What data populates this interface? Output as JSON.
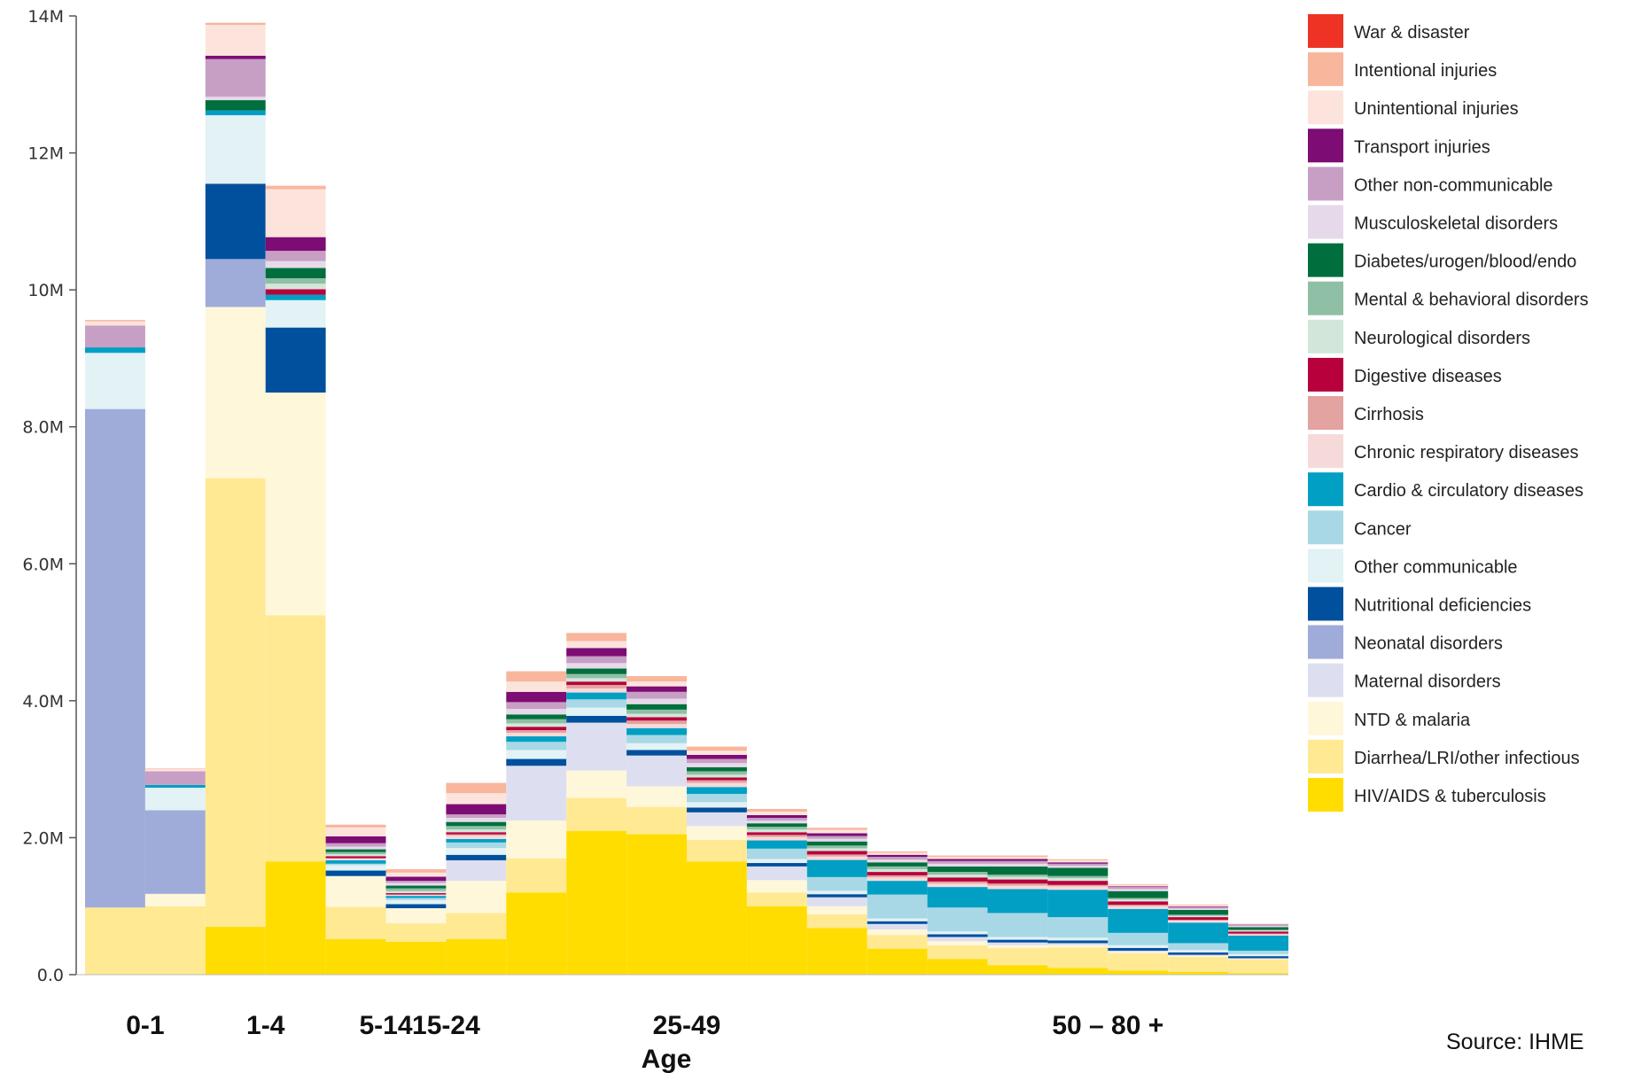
{
  "chart_data": {
    "type": "bar",
    "stacked": true,
    "title": "",
    "xlabel": "Age",
    "ylabel": "",
    "ylim": [
      0,
      14000000
    ],
    "yticks": [
      {
        "value": 0,
        "label": "0.0"
      },
      {
        "value": 2000000,
        "label": "2.0M"
      },
      {
        "value": 4000000,
        "label": "4.0M"
      },
      {
        "value": 6000000,
        "label": "6.0M"
      },
      {
        "value": 8000000,
        "label": "8.0M"
      },
      {
        "value": 10000000,
        "label": "10M"
      },
      {
        "value": 12000000,
        "label": "12M"
      },
      {
        "value": 14000000,
        "label": "14M"
      }
    ],
    "grid": false,
    "legend_position": "right",
    "group_labels": [
      {
        "label": "0-1",
        "center": 0.5
      },
      {
        "label": "1-4",
        "center": 2.5
      },
      {
        "label": "5-14",
        "center": 4.5
      },
      {
        "label": "15-24",
        "center": 5.5
      },
      {
        "label": "25-49",
        "center": 9.5
      },
      {
        "label": "50 – 80 +",
        "center": 16.5
      }
    ],
    "series_order_top_to_bottom": [
      "War & disaster",
      "Intentional injuries",
      "Unintentional injuries",
      "Transport injuries",
      "Other non-communicable",
      "Musculoskeletal disorders",
      "Diabetes/urogen/blood/endo",
      "Mental & behavioral disorders",
      "Neurological disorders",
      "Digestive diseases",
      "Cirrhosis",
      "Chronic respiratory diseases",
      "Cardio & circulatory diseases",
      "Cancer",
      "Other communicable",
      "Nutritional deficiencies",
      "Neonatal disorders",
      "Maternal disorders",
      "NTD & malaria",
      "Diarrhea/LRI/other infectious",
      "HIV/AIDS & tuberculosis"
    ],
    "series": [
      {
        "name": "HIV/AIDS & tuberculosis",
        "color": "#FFDD00",
        "values": [
          0,
          0,
          700000,
          1650000,
          520000,
          480000,
          520000,
          1200000,
          2100000,
          2050000,
          1650000,
          1000000,
          680000,
          380000,
          230000,
          140000,
          100000,
          60000,
          40000,
          20000
        ]
      },
      {
        "name": "Diarrhea/LRI/other infectious",
        "color": "#FFE993",
        "values": [
          980000,
          1000000,
          6550000,
          3600000,
          470000,
          270000,
          380000,
          500000,
          480000,
          400000,
          320000,
          200000,
          200000,
          200000,
          200000,
          250000,
          300000,
          250000,
          220000,
          200000
        ]
      },
      {
        "name": "NTD & malaria",
        "color": "#FFF7DA",
        "values": [
          0,
          180000,
          2500000,
          3250000,
          450000,
          220000,
          470000,
          550000,
          400000,
          300000,
          200000,
          180000,
          120000,
          80000,
          60000,
          40000,
          30000,
          20000,
          15000,
          10000
        ]
      },
      {
        "name": "Maternal disorders",
        "color": "#DDDFF0",
        "values": [
          0,
          0,
          0,
          0,
          0,
          0,
          300000,
          800000,
          700000,
          450000,
          200000,
          200000,
          130000,
          80000,
          60000,
          40000,
          30000,
          20000,
          15000,
          10000
        ]
      },
      {
        "name": "Neonatal disorders",
        "color": "#9FABD8",
        "values": [
          7280000,
          1220000,
          700000,
          0,
          0,
          0,
          0,
          0,
          0,
          0,
          0,
          0,
          0,
          0,
          0,
          0,
          0,
          0,
          0,
          0
        ]
      },
      {
        "name": "Nutritional deficiencies",
        "color": "#00509E",
        "values": [
          0,
          0,
          1100000,
          950000,
          80000,
          60000,
          80000,
          100000,
          100000,
          80000,
          70000,
          50000,
          45000,
          40000,
          40000,
          40000,
          40000,
          40000,
          35000,
          30000
        ]
      },
      {
        "name": "Other communicable",
        "color": "#E2F2F5",
        "values": [
          820000,
          330000,
          1000000,
          400000,
          80000,
          60000,
          100000,
          130000,
          120000,
          100000,
          80000,
          60000,
          50000,
          40000,
          40000,
          40000,
          40000,
          40000,
          35000,
          30000
        ]
      },
      {
        "name": "Cancer",
        "color": "#A8D8E5",
        "values": [
          0,
          0,
          0,
          0,
          20000,
          30000,
          80000,
          120000,
          120000,
          120000,
          120000,
          150000,
          200000,
          350000,
          350000,
          350000,
          300000,
          180000,
          100000,
          50000
        ]
      },
      {
        "name": "Cardio & circulatory diseases",
        "color": "#009FC3",
        "values": [
          80000,
          40000,
          70000,
          80000,
          50000,
          30000,
          50000,
          80000,
          100000,
          100000,
          100000,
          120000,
          250000,
          200000,
          300000,
          350000,
          400000,
          350000,
          300000,
          220000
        ]
      },
      {
        "name": "Chronic respiratory diseases",
        "color": "#F6DADA",
        "values": [
          0,
          0,
          0,
          0,
          30000,
          20000,
          50000,
          50000,
          60000,
          60000,
          60000,
          50000,
          50000,
          50000,
          50000,
          50000,
          50000,
          40000,
          30000,
          20000
        ]
      },
      {
        "name": "Cirrhosis",
        "color": "#E3A3A0",
        "values": [
          0,
          0,
          0,
          0,
          0,
          0,
          20000,
          40000,
          50000,
          50000,
          40000,
          30000,
          30000,
          30000,
          30000,
          30000,
          20000,
          20000,
          10000,
          10000
        ]
      },
      {
        "name": "Digestive diseases",
        "color": "#B8003C",
        "values": [
          0,
          0,
          0,
          80000,
          30000,
          20000,
          30000,
          50000,
          50000,
          50000,
          40000,
          40000,
          50000,
          50000,
          60000,
          60000,
          60000,
          50000,
          40000,
          30000
        ]
      },
      {
        "name": "Neurological disorders",
        "color": "#D2E6DA",
        "values": [
          0,
          0,
          0,
          80000,
          30000,
          30000,
          40000,
          50000,
          50000,
          50000,
          40000,
          40000,
          40000,
          40000,
          40000,
          40000,
          40000,
          30000,
          20000,
          15000
        ]
      },
      {
        "name": "Mental & behavioral disorders",
        "color": "#8FBFA4",
        "values": [
          0,
          0,
          0,
          80000,
          30000,
          40000,
          50000,
          60000,
          60000,
          60000,
          50000,
          40000,
          40000,
          40000,
          40000,
          30000,
          30000,
          20000,
          15000,
          10000
        ]
      },
      {
        "name": "Diabetes/urogen/blood/endo",
        "color": "#006F3D",
        "values": [
          0,
          0,
          150000,
          150000,
          40000,
          40000,
          60000,
          70000,
          80000,
          80000,
          60000,
          50000,
          60000,
          60000,
          80000,
          120000,
          120000,
          100000,
          70000,
          40000
        ]
      },
      {
        "name": "Musculoskeletal disorders",
        "color": "#E6DAEA",
        "values": [
          0,
          0,
          50000,
          100000,
          40000,
          40000,
          60000,
          80000,
          80000,
          80000,
          60000,
          40000,
          40000,
          40000,
          40000,
          40000,
          30000,
          30000,
          20000,
          15000
        ]
      },
      {
        "name": "Other non-communicable",
        "color": "#C79FC4",
        "values": [
          320000,
          200000,
          550000,
          150000,
          50000,
          30000,
          50000,
          100000,
          100000,
          100000,
          60000,
          40000,
          40000,
          40000,
          40000,
          40000,
          30000,
          30000,
          20000,
          15000
        ]
      },
      {
        "name": "Transport injuries",
        "color": "#7D0C75",
        "values": [
          0,
          0,
          50000,
          200000,
          100000,
          60000,
          150000,
          150000,
          120000,
          80000,
          60000,
          40000,
          40000,
          30000,
          30000,
          30000,
          20000,
          10000,
          10000,
          5000
        ]
      },
      {
        "name": "Unintentional injuries",
        "color": "#FCE4DD",
        "values": [
          60000,
          30000,
          450000,
          700000,
          130000,
          60000,
          160000,
          150000,
          100000,
          70000,
          60000,
          50000,
          50000,
          30000,
          30000,
          30000,
          30000,
          20000,
          20000,
          10000
        ]
      },
      {
        "name": "Intentional injuries",
        "color": "#F8B69C",
        "values": [
          20000,
          10000,
          30000,
          50000,
          40000,
          50000,
          150000,
          150000,
          120000,
          80000,
          60000,
          40000,
          30000,
          20000,
          20000,
          20000,
          15000,
          10000,
          10000,
          5000
        ]
      },
      {
        "name": "War & disaster",
        "color": "#EE3324",
        "values": [
          0,
          0,
          0,
          0,
          0,
          0,
          0,
          0,
          0,
          0,
          0,
          0,
          0,
          0,
          0,
          0,
          0,
          0,
          0,
          0
        ]
      }
    ]
  },
  "source_note": "Source: IHME"
}
